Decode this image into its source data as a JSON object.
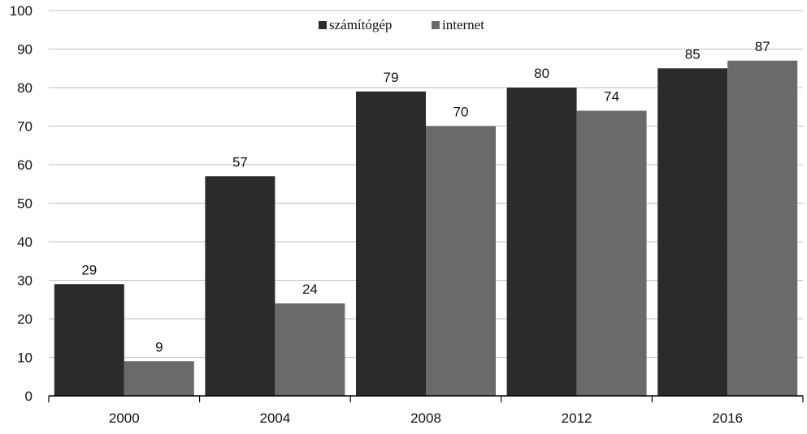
{
  "chart_data": {
    "type": "bar",
    "categories": [
      "2000",
      "2004",
      "2008",
      "2012",
      "2016"
    ],
    "series": [
      {
        "name": "számítógép",
        "values": [
          29,
          57,
          79,
          80,
          85
        ],
        "color": "#2b2b2b"
      },
      {
        "name": "internet",
        "values": [
          9,
          24,
          70,
          74,
          87
        ],
        "color": "#6a6a6a"
      }
    ],
    "ylim": [
      0,
      100
    ],
    "yticks": [
      0,
      10,
      20,
      30,
      40,
      50,
      60,
      70,
      80,
      90,
      100
    ],
    "grid": true,
    "legend": "top-center",
    "gridColor": "#bfbfbf",
    "axisColor": "#000000",
    "textColor": "#111111"
  }
}
